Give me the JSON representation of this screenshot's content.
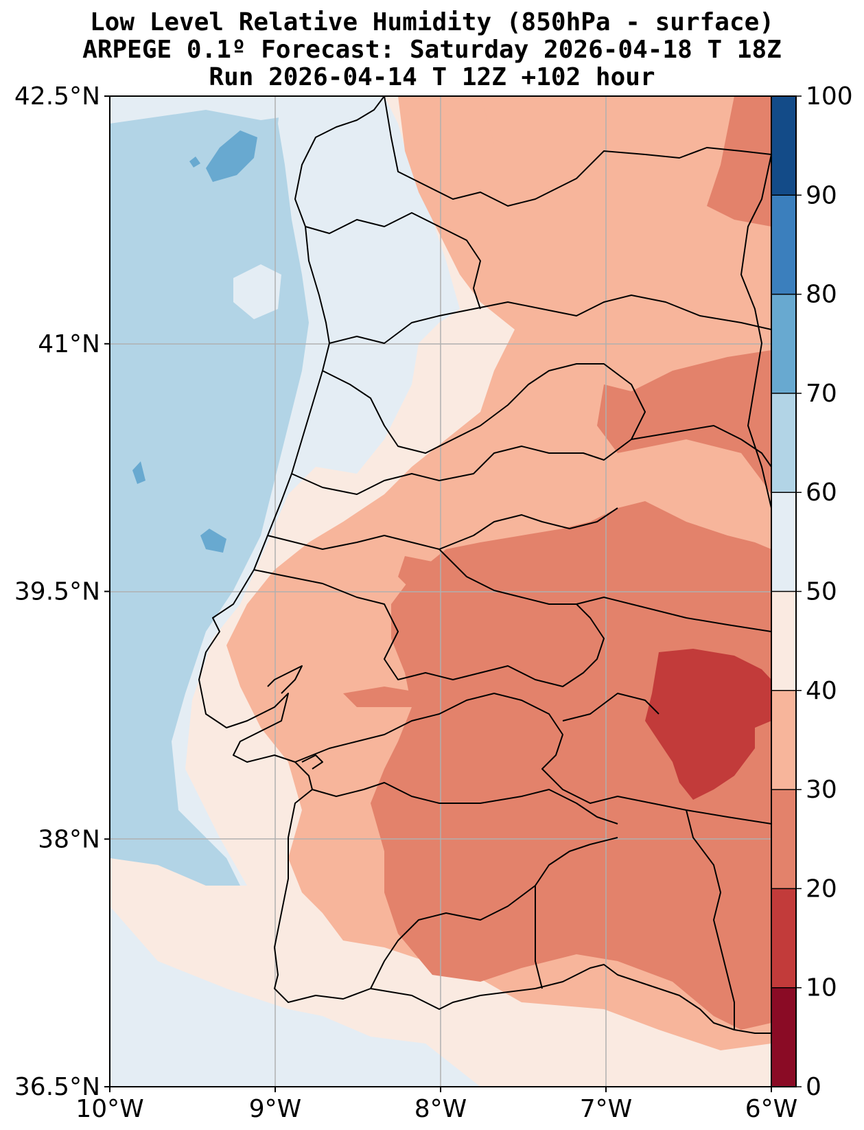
{
  "title": {
    "line1": "Low Level Relative Humidity (850hPa - surface)",
    "line2": "ARPEGE 0.1º Forecast: Saturday 2026-04-18 T 18Z",
    "line3": "Run 2026-04-14 T 12Z +102 hour"
  },
  "map": {
    "lon_range": [
      -10,
      -6
    ],
    "lat_range": [
      36.5,
      42.5
    ],
    "lon_ticks": [
      {
        "value": -10,
        "label": "10°W"
      },
      {
        "value": -9,
        "label": "9°W"
      },
      {
        "value": -8,
        "label": "8°W"
      },
      {
        "value": -7,
        "label": "7°W"
      },
      {
        "value": -6,
        "label": "6°W"
      }
    ],
    "lat_ticks": [
      {
        "value": 42.5,
        "label": "42.5°N"
      },
      {
        "value": 41,
        "label": "41°N"
      },
      {
        "value": 39.5,
        "label": "39.5°N"
      },
      {
        "value": 38,
        "label": "38°N"
      },
      {
        "value": 36.5,
        "label": "36.5°N"
      }
    ],
    "ocean_color": "#b2d4e6",
    "gridline_color": "#b0b0b0"
  },
  "colorbar": {
    "levels": [
      0,
      10,
      20,
      30,
      40,
      50,
      60,
      70,
      80,
      90,
      100
    ],
    "colors": [
      "#8a0b25",
      "#c23b3a",
      "#e3826b",
      "#f7b59b",
      "#faeae1",
      "#e4edf4",
      "#b2d4e6",
      "#68a9d0",
      "#3b7fbd",
      "#134b88"
    ]
  }
}
